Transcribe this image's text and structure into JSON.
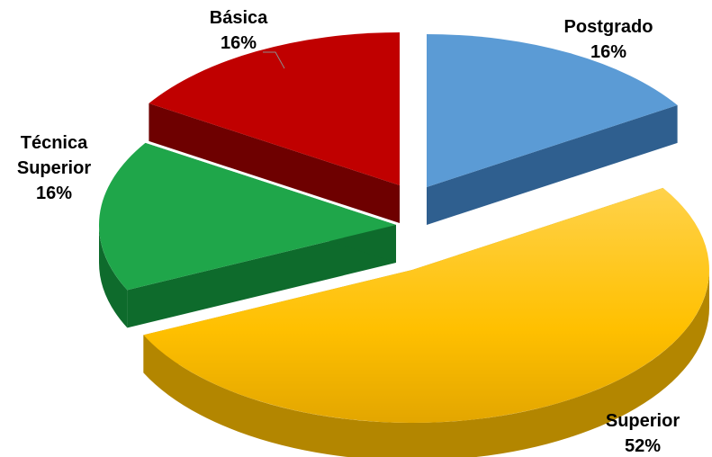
{
  "chart_data": {
    "type": "pie",
    "categories": [
      "Postgrado",
      "Superior",
      "Técnica Superior",
      "Básica"
    ],
    "values": [
      16,
      52,
      16,
      16
    ],
    "value_labels": [
      "16%",
      "52%",
      "16%",
      "16%"
    ],
    "label_lines": [
      [
        "Postgrado"
      ],
      [
        "Superior"
      ],
      [
        "Técnica",
        "Superior"
      ],
      [
        "Básica"
      ]
    ],
    "colors": {
      "Postgrado": {
        "top": "#5B9BD5",
        "side": "#2F5F8F"
      },
      "Superior": {
        "top": "#FFC000",
        "side": "#B38600"
      },
      "Técnica Superior": {
        "top": "#1FA64A",
        "side": "#0E6B2C"
      },
      "Básica": {
        "top": "#C00000",
        "side": "#6E0000"
      }
    },
    "style": "3d-exploded",
    "legend": "none"
  }
}
